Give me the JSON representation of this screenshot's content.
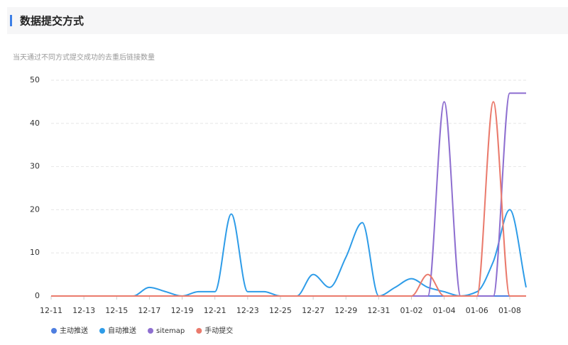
{
  "header": {
    "title": "数据提交方式"
  },
  "chart_data": {
    "type": "line",
    "subtitle": "当天通过不同方式提交成功的去重后链接数量",
    "categories": [
      "12-11",
      null,
      "12-13",
      null,
      "12-15",
      null,
      "12-17",
      null,
      "12-19",
      null,
      "12-21",
      null,
      "12-23",
      null,
      "12-25",
      null,
      "12-27",
      null,
      "12-29",
      null,
      "12-31",
      null,
      "01-02",
      null,
      "01-04",
      null,
      "01-06",
      null,
      "01-08",
      null
    ],
    "series": [
      {
        "name": "主动推送",
        "color": "#4e7ee0",
        "values": [
          0,
          0,
          0,
          0,
          0,
          0,
          0,
          0,
          0,
          0,
          0,
          0,
          0,
          0,
          0,
          0,
          0,
          0,
          0,
          0,
          0,
          0,
          0,
          0,
          0,
          0,
          0,
          0,
          0,
          0
        ]
      },
      {
        "name": "自动推送",
        "color": "#2e9ce8",
        "values": [
          0,
          0,
          0,
          0,
          0,
          0,
          2,
          1,
          0,
          1,
          1,
          19,
          1,
          1,
          0,
          0,
          5,
          2,
          9,
          17,
          0,
          2,
          4,
          2,
          1,
          0,
          1,
          8,
          20,
          2
        ]
      },
      {
        "name": "sitemap",
        "color": "#8e6fd0",
        "values": [
          0,
          0,
          0,
          0,
          0,
          0,
          0,
          0,
          0,
          0,
          0,
          0,
          0,
          0,
          0,
          0,
          0,
          0,
          0,
          0,
          0,
          0,
          0,
          0,
          45,
          0,
          0,
          0,
          47,
          47
        ]
      },
      {
        "name": "手动提交",
        "color": "#ea7a6c",
        "values": [
          0,
          0,
          0,
          0,
          0,
          0,
          0,
          0,
          0,
          0,
          0,
          0,
          0,
          0,
          0,
          0,
          0,
          0,
          0,
          0,
          0,
          0,
          0,
          5,
          0,
          0,
          0,
          45,
          0,
          0
        ]
      }
    ],
    "ylim": [
      0,
      50
    ],
    "yticks": [
      0,
      10,
      20,
      30,
      40,
      50
    ],
    "grid": true
  }
}
